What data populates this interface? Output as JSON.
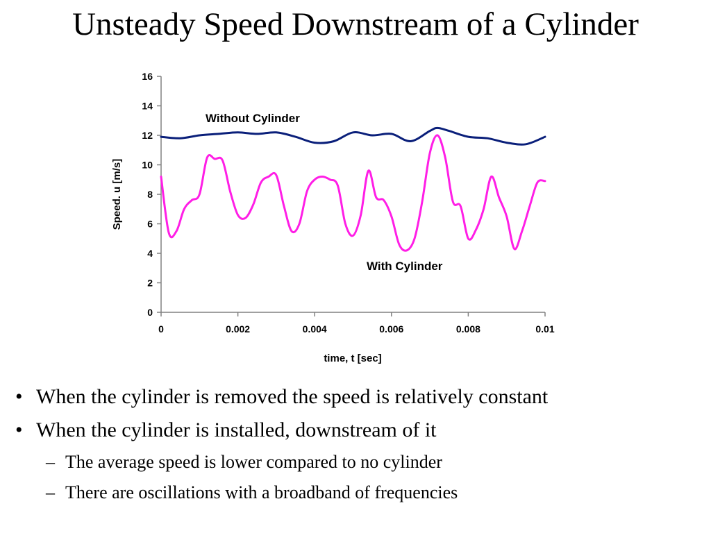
{
  "slide": {
    "title": "Unsteady Speed Downstream of a Cylinder"
  },
  "chart_data": {
    "type": "line",
    "title": "",
    "xlabel": "time, t [sec]",
    "ylabel": "Speed. u [m/s]",
    "xlim": [
      0,
      0.01
    ],
    "ylim": [
      0,
      16
    ],
    "x_ticks": [
      "0",
      "0.002",
      "0.004",
      "0.006",
      "0.008",
      "0.01"
    ],
    "y_ticks": [
      "0",
      "2",
      "4",
      "6",
      "8",
      "10",
      "12",
      "14",
      "16"
    ],
    "grid": false,
    "legend": "none",
    "series": [
      {
        "name": "Without Cylinder",
        "color": "#0a1f7a",
        "x": [
          0,
          0.0005,
          0.001,
          0.0015,
          0.002,
          0.0025,
          0.003,
          0.0035,
          0.004,
          0.0045,
          0.005,
          0.0055,
          0.006,
          0.0065,
          0.007,
          0.0072,
          0.0075,
          0.008,
          0.0085,
          0.009,
          0.0095,
          0.01
        ],
        "y": [
          11.9,
          11.8,
          12.0,
          12.1,
          12.2,
          12.1,
          12.2,
          11.9,
          11.5,
          11.6,
          12.2,
          12.0,
          12.1,
          11.6,
          12.3,
          12.5,
          12.3,
          11.9,
          11.8,
          11.5,
          11.4,
          11.9
        ]
      },
      {
        "name": "With Cylinder",
        "color": "#ff1ee6",
        "x": [
          0,
          0.0002,
          0.0004,
          0.0006,
          0.0008,
          0.001,
          0.0012,
          0.0014,
          0.0016,
          0.0018,
          0.002,
          0.0022,
          0.0024,
          0.0026,
          0.0028,
          0.003,
          0.0032,
          0.0034,
          0.0036,
          0.0038,
          0.004,
          0.0042,
          0.0044,
          0.0046,
          0.0048,
          0.005,
          0.0052,
          0.0054,
          0.0056,
          0.0058,
          0.006,
          0.0062,
          0.0064,
          0.0066,
          0.0068,
          0.007,
          0.0072,
          0.0074,
          0.0076,
          0.0078,
          0.008,
          0.0082,
          0.0084,
          0.0086,
          0.0088,
          0.009,
          0.0092,
          0.0094,
          0.0096,
          0.0098,
          0.01
        ],
        "y": [
          9.2,
          5.4,
          5.5,
          7.0,
          7.6,
          8.0,
          10.5,
          10.4,
          10.3,
          8.2,
          6.6,
          6.4,
          7.3,
          8.8,
          9.2,
          9.3,
          7.2,
          5.5,
          6.0,
          8.2,
          9.0,
          9.2,
          9.0,
          8.6,
          6.0,
          5.2,
          6.6,
          9.6,
          7.8,
          7.6,
          6.5,
          4.6,
          4.2,
          5.0,
          7.5,
          10.8,
          12.0,
          10.5,
          7.5,
          7.2,
          5.0,
          5.6,
          7.0,
          9.2,
          7.8,
          6.5,
          4.3,
          5.5,
          7.2,
          8.8,
          8.9
        ]
      }
    ]
  },
  "bullets": [
    "When the cylinder is removed the speed is relatively constant",
    "When the cylinder is installed, downstream of it"
  ],
  "sub_bullets": [
    "The average speed is lower compared to no cylinder",
    "There are oscillations with a broadband of frequencies"
  ],
  "marks": {
    "bullet": "•",
    "dash": "–"
  }
}
